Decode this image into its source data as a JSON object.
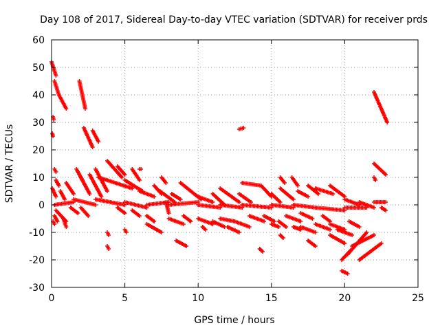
{
  "chart_data": {
    "type": "scatter",
    "title": "Day 108 of 2017, Sidereal Day-to-day VTEC variation (SDTVAR) for receiver prds",
    "xlabel": "GPS time / hours",
    "ylabel": "SDTVAR / TECUs",
    "xlim": [
      0,
      25
    ],
    "ylim": [
      -30,
      60
    ],
    "xticks": [
      0,
      5,
      10,
      15,
      20,
      25
    ],
    "yticks": [
      -30,
      -20,
      -10,
      0,
      10,
      20,
      30,
      40,
      50,
      60
    ],
    "grid": true,
    "marker": "+",
    "colors": {
      "series": "#ff0000",
      "grid": "#a0a0a0",
      "axis": "#000000"
    },
    "segments": [
      [
        0.0,
        52,
        0.3,
        47
      ],
      [
        0.2,
        45,
        0.5,
        40
      ],
      [
        0.5,
        40,
        1.0,
        35
      ],
      [
        0.1,
        32,
        0.15,
        31
      ],
      [
        0.05,
        26,
        0.1,
        25
      ],
      [
        1.9,
        45,
        2.3,
        35
      ],
      [
        2.2,
        28,
        2.8,
        21
      ],
      [
        2.8,
        27,
        3.2,
        23
      ],
      [
        12.8,
        27.5,
        13.1,
        28
      ],
      [
        22.0,
        41,
        22.9,
        30
      ],
      [
        22.0,
        15,
        22.8,
        11
      ],
      [
        22.0,
        10,
        22.1,
        9
      ],
      [
        0.05,
        6,
        0.3,
        3
      ],
      [
        0.2,
        13,
        0.3,
        12
      ],
      [
        0.3,
        9,
        0.5,
        7
      ],
      [
        0.6,
        5,
        0.9,
        2
      ],
      [
        1.0,
        8,
        1.5,
        4
      ],
      [
        1.7,
        13,
        2.1,
        9
      ],
      [
        2.0,
        10,
        2.6,
        4
      ],
      [
        2.6,
        11,
        3.4,
        3
      ],
      [
        3.0,
        13,
        3.8,
        5
      ],
      [
        3.8,
        16,
        4.8,
        10
      ],
      [
        4.5,
        14,
        5.0,
        11
      ],
      [
        3.2,
        10,
        5.5,
        6
      ],
      [
        5.5,
        13,
        6.0,
        9
      ],
      [
        5.0,
        9,
        6.2,
        5
      ],
      [
        6.0,
        5,
        7.0,
        3
      ],
      [
        7.0,
        7,
        7.5,
        4
      ],
      [
        7.5,
        10,
        7.8,
        8
      ],
      [
        7.4,
        5,
        8.4,
        1
      ],
      [
        8.2,
        4,
        8.8,
        2
      ],
      [
        8.8,
        8,
        9.5,
        5
      ],
      [
        9.5,
        5,
        10.2,
        2
      ],
      [
        10.0,
        3,
        11.0,
        1
      ],
      [
        11.0,
        4,
        11.8,
        0
      ],
      [
        11.5,
        6,
        12.8,
        1
      ],
      [
        12.8,
        4,
        13.6,
        1
      ],
      [
        13.0,
        8,
        14.3,
        7
      ],
      [
        14.3,
        7,
        15.0,
        3
      ],
      [
        15.0,
        4,
        15.6,
        1
      ],
      [
        15.6,
        10,
        15.9,
        8
      ],
      [
        15.6,
        6,
        16.5,
        2
      ],
      [
        16.4,
        10,
        16.8,
        7
      ],
      [
        16.8,
        5,
        17.5,
        3
      ],
      [
        17.5,
        7,
        18.2,
        4
      ],
      [
        18.0,
        6,
        19.2,
        4
      ],
      [
        19.0,
        7,
        20.0,
        3
      ],
      [
        20.0,
        2,
        21.0,
        0
      ],
      [
        21.0,
        1,
        22.0,
        -1
      ],
      [
        22.0,
        1,
        22.8,
        1
      ],
      [
        0.2,
        0,
        1.5,
        1
      ],
      [
        1.5,
        2,
        3.0,
        0
      ],
      [
        3.0,
        2,
        5.0,
        0
      ],
      [
        5.0,
        1,
        6.5,
        -1
      ],
      [
        6.5,
        0,
        8.0,
        1
      ],
      [
        8.0,
        0,
        10.0,
        1
      ],
      [
        10.0,
        0,
        11.5,
        -1
      ],
      [
        11.5,
        0,
        13.0,
        -1
      ],
      [
        13.0,
        0,
        15.0,
        -1
      ],
      [
        15.0,
        0,
        16.5,
        -1
      ],
      [
        16.5,
        0,
        18.0,
        -1
      ],
      [
        18.0,
        -1,
        20.0,
        -2
      ],
      [
        20.0,
        -1,
        21.5,
        -1
      ],
      [
        22.5,
        -1,
        22.8,
        -2
      ],
      [
        0.3,
        -2,
        1.0,
        -6
      ],
      [
        0.8,
        -5,
        1.0,
        -8
      ],
      [
        0.2,
        -4,
        0.4,
        -6
      ],
      [
        1.3,
        -1,
        1.8,
        -3
      ],
      [
        2.0,
        -1,
        2.5,
        -4
      ],
      [
        4.5,
        -1,
        5.0,
        -3
      ],
      [
        5.5,
        -2,
        6.0,
        -4
      ],
      [
        6.5,
        -4,
        7.0,
        -6
      ],
      [
        6.5,
        -7,
        7.5,
        -10
      ],
      [
        8.0,
        -5,
        9.0,
        -7
      ],
      [
        9.0,
        -4,
        9.5,
        -6
      ],
      [
        8.5,
        -13,
        9.2,
        -15
      ],
      [
        10.0,
        -5,
        11.0,
        -7
      ],
      [
        10.3,
        -8,
        10.5,
        -9
      ],
      [
        11.0,
        -6,
        11.8,
        -8
      ],
      [
        11.5,
        -5,
        12.5,
        -6
      ],
      [
        12.0,
        -8,
        12.8,
        -10
      ],
      [
        12.5,
        -6,
        13.5,
        -8
      ],
      [
        13.5,
        -4,
        14.5,
        -6
      ],
      [
        14.2,
        -16,
        14.4,
        -17
      ],
      [
        14.5,
        -4,
        15.2,
        -6
      ],
      [
        15.0,
        -7,
        15.5,
        -8
      ],
      [
        15.5,
        -6,
        16.0,
        -8
      ],
      [
        15.6,
        -11,
        15.8,
        -12
      ],
      [
        16.0,
        -4,
        17.0,
        -6
      ],
      [
        17.0,
        -3,
        17.8,
        -5
      ],
      [
        17.0,
        -8,
        18.0,
        -10
      ],
      [
        16.5,
        -8,
        17.0,
        -9
      ],
      [
        17.5,
        -13,
        18.0,
        -15
      ],
      [
        18.0,
        -7,
        19.0,
        -9
      ],
      [
        18.5,
        -4,
        19.0,
        -6
      ],
      [
        19.0,
        -7,
        20.0,
        -9
      ],
      [
        19.0,
        -11,
        20.0,
        -14
      ],
      [
        19.5,
        -9,
        20.5,
        -11
      ],
      [
        20.3,
        -6,
        21.0,
        -8
      ],
      [
        19.8,
        -20,
        20.5,
        -16
      ],
      [
        19.8,
        -24,
        20.2,
        -25
      ],
      [
        20.2,
        -18,
        21.5,
        -10
      ],
      [
        20.5,
        -15,
        22.0,
        -11
      ],
      [
        21.0,
        -20,
        22.5,
        -14
      ],
      [
        3.8,
        -10,
        3.9,
        -11
      ],
      [
        3.8,
        -15,
        3.9,
        -16
      ],
      [
        5.0,
        -9,
        5.1,
        -10
      ],
      [
        0.1,
        -6,
        0.2,
        -7
      ],
      [
        6.0,
        13,
        6.1,
        13
      ],
      [
        7.8,
        1,
        8.0,
        -3
      ]
    ]
  }
}
